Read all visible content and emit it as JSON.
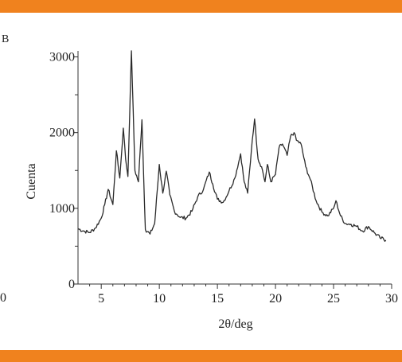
{
  "colors": {
    "band": "#f0821e",
    "axis": "#333333",
    "trace": "#2a2a2a"
  },
  "chart_data": {
    "type": "line",
    "panel_label": "B",
    "left_edge_label": "0",
    "xlabel": "2θ/deg",
    "ylabel": "Cuenta",
    "xlim": [
      3,
      30
    ],
    "ylim": [
      0,
      3100
    ],
    "x_ticks": [
      "5",
      "10",
      "15",
      "20",
      "25",
      "30"
    ],
    "y_ticks": [
      "0",
      "1000",
      "2000",
      "3000"
    ],
    "series": [
      {
        "x": [
          3,
          3.5,
          4,
          4.5,
          5,
          5.3,
          5.6,
          6.0,
          6.3,
          6.6,
          6.9,
          7.1,
          7.3,
          7.6,
          7.9,
          8.2,
          8.5,
          8.8,
          9.2,
          9.6,
          10.0,
          10.3,
          10.6,
          10.9,
          11.3,
          11.8,
          12.3,
          12.8,
          13.3,
          13.8,
          14.3,
          14.6,
          15.0,
          15.5,
          16.0,
          16.5,
          17.0,
          17.3,
          17.6,
          18.0,
          18.2,
          18.5,
          18.8,
          19.1,
          19.3,
          19.6,
          20.0,
          20.3,
          20.6,
          21.0,
          21.3,
          21.6,
          21.8,
          22.2,
          22.6,
          23.0,
          23.5,
          24.0,
          24.5,
          25.0,
          25.2,
          25.6,
          26.0,
          26.5,
          27.0,
          27.5,
          28.0,
          28.5,
          29.0,
          29.5
        ],
        "y": [
          730,
          700,
          680,
          740,
          870,
          1050,
          1250,
          1050,
          1760,
          1400,
          2060,
          1650,
          1420,
          3080,
          1500,
          1350,
          2170,
          720,
          660,
          800,
          1580,
          1200,
          1490,
          1180,
          960,
          880,
          870,
          960,
          1150,
          1250,
          1480,
          1320,
          1120,
          1080,
          1230,
          1400,
          1720,
          1350,
          1200,
          1900,
          2180,
          1650,
          1550,
          1350,
          1580,
          1350,
          1450,
          1800,
          1850,
          1700,
          1950,
          2000,
          1900,
          1850,
          1550,
          1380,
          1100,
          950,
          900,
          1000,
          1100,
          900,
          800,
          790,
          760,
          700,
          760,
          680,
          610,
          580
        ]
      }
    ]
  }
}
